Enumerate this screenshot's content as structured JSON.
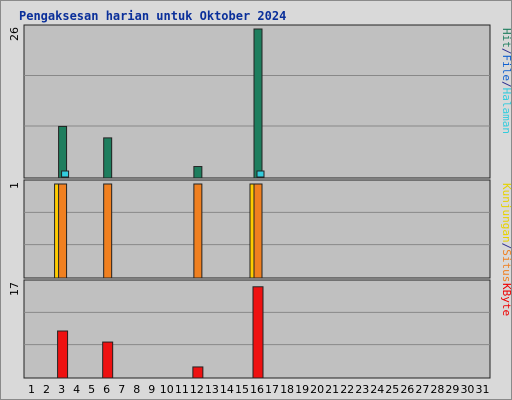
{
  "chart_data": {
    "type": "bar",
    "title": "Pengaksesan harian untuk Oktober 2024",
    "categories": [
      "1",
      "2",
      "3",
      "4",
      "5",
      "6",
      "7",
      "8",
      "9",
      "10",
      "11",
      "12",
      "13",
      "14",
      "15",
      "16",
      "17",
      "18",
      "19",
      "20",
      "21",
      "22",
      "23",
      "24",
      "25",
      "26",
      "27",
      "28",
      "29",
      "30",
      "31"
    ],
    "weekend_days": [
      "5",
      "6",
      "12",
      "13",
      "19",
      "20",
      "26",
      "27"
    ],
    "panels": [
      {
        "name": "hits-panel",
        "ymax_label": "26",
        "ylim": [
          0,
          26
        ],
        "legend": [
          "Hit",
          "/",
          "File",
          "/",
          "Halaman"
        ],
        "legend_colors": [
          "#1e7e5e",
          "#303090",
          "#1060d0",
          "#303090",
          "#33ccdd"
        ],
        "series": [
          {
            "name": "Hit",
            "color": "#1e7e5e",
            "values": [
              0,
              0,
              9,
              0,
              0,
              7,
              0,
              0,
              0,
              0,
              0,
              2,
              0,
              0,
              0,
              26,
              0,
              0,
              0,
              0,
              0,
              0,
              0,
              0,
              0,
              0,
              0,
              0,
              0,
              0,
              0
            ]
          },
          {
            "name": "File",
            "color": "#1060d0",
            "values": [
              0,
              0,
              0,
              0,
              0,
              0,
              0,
              0,
              0,
              0,
              0,
              0,
              0,
              0,
              0,
              0,
              0,
              0,
              0,
              0,
              0,
              0,
              0,
              0,
              0,
              0,
              0,
              0,
              0,
              0,
              0
            ]
          },
          {
            "name": "Halaman",
            "color": "#33ccdd",
            "values": [
              0,
              0,
              1,
              0,
              0,
              0,
              0,
              0,
              0,
              0,
              0,
              0,
              0,
              0,
              0,
              1,
              0,
              0,
              0,
              0,
              0,
              0,
              0,
              0,
              0,
              0,
              0,
              0,
              0,
              0,
              0
            ]
          }
        ]
      },
      {
        "name": "visits-panel",
        "ymax_label": "1",
        "ylim": [
          0,
          1
        ],
        "legend": [
          "Kunjungan",
          "/",
          "Situs"
        ],
        "legend_colors": [
          "#e6d200",
          "#303090",
          "#f08020"
        ],
        "series": [
          {
            "name": "Kunjungan",
            "color": "#ffcc00",
            "values": [
              0,
              0,
              1,
              0,
              0,
              0,
              0,
              0,
              0,
              0,
              0,
              0,
              0,
              0,
              0,
              1,
              0,
              0,
              0,
              0,
              0,
              0,
              0,
              0,
              0,
              0,
              0,
              0,
              0,
              0,
              0
            ]
          },
          {
            "name": "Situs",
            "color": "#f08020",
            "values": [
              0,
              0,
              1,
              0,
              0,
              1,
              0,
              0,
              0,
              0,
              0,
              1,
              0,
              0,
              0,
              1,
              0,
              0,
              0,
              0,
              0,
              0,
              0,
              0,
              0,
              0,
              0,
              0,
              0,
              0,
              0
            ]
          }
        ]
      },
      {
        "name": "kbyte-panel",
        "ymax_label": "17",
        "ylim": [
          0,
          17
        ],
        "legend": [
          "KByte"
        ],
        "legend_colors": [
          "#ee0000"
        ],
        "series": [
          {
            "name": "KByte",
            "color": "#ee1111",
            "values": [
              0,
              0,
              8.5,
              0,
              0,
              6.5,
              0,
              0,
              0,
              0,
              0,
              2,
              0,
              0,
              0,
              16.5,
              0,
              0,
              0,
              0,
              0,
              0,
              0,
              0,
              0,
              0,
              0,
              0,
              0,
              0,
              0
            ]
          }
        ]
      }
    ]
  }
}
